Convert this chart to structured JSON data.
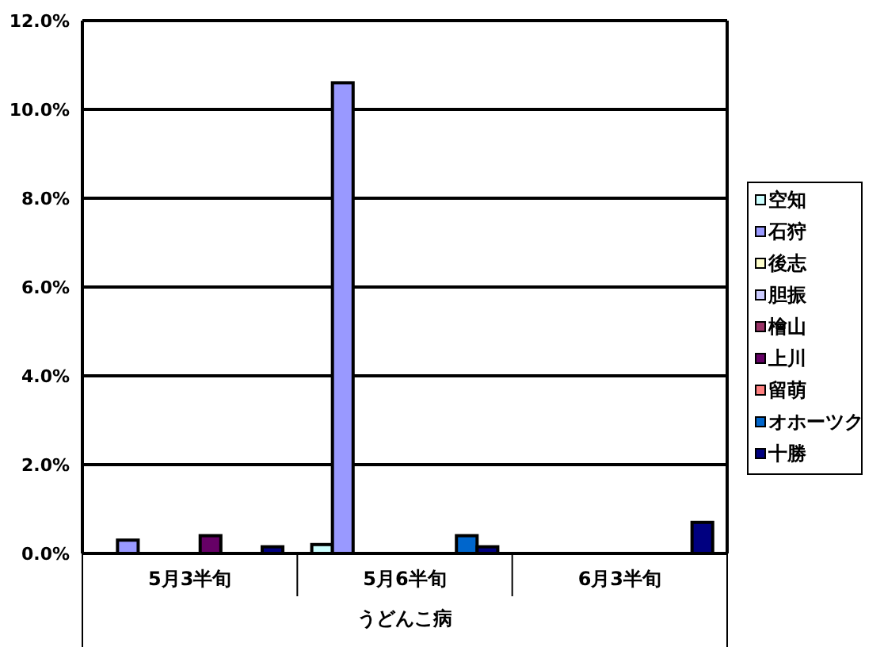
{
  "chart_data": {
    "type": "bar",
    "xlabel": "うどんこ病",
    "categories": [
      "5月3半旬",
      "5月6半旬",
      "6月3半旬"
    ],
    "series": [
      {
        "name": "空知",
        "color": "#ccffff",
        "values": [
          0,
          0.2,
          0
        ]
      },
      {
        "name": "石狩",
        "color": "#9999ff",
        "values": [
          0.3,
          10.6,
          0
        ]
      },
      {
        "name": "後志",
        "color": "#ffffcc",
        "values": [
          0,
          0,
          0
        ]
      },
      {
        "name": "胆振",
        "color": "#ccccff",
        "values": [
          0,
          0,
          0
        ]
      },
      {
        "name": "檜山",
        "color": "#993366",
        "values": [
          0,
          0,
          0
        ]
      },
      {
        "name": "上川",
        "color": "#660066",
        "values": [
          0.4,
          0,
          0
        ]
      },
      {
        "name": "留萌",
        "color": "#ff8080",
        "values": [
          0,
          0,
          0
        ]
      },
      {
        "name": "オホーツク",
        "color": "#0066cc",
        "values": [
          0,
          0.4,
          0
        ]
      },
      {
        "name": "十勝",
        "color": "#000080",
        "values": [
          0.15,
          0.15,
          0.7
        ]
      }
    ],
    "ylim": [
      0,
      12
    ],
    "yticks": [
      {
        "value": 0,
        "label": "0.0%"
      },
      {
        "value": 2,
        "label": "2.0%"
      },
      {
        "value": 4,
        "label": "4.0%"
      },
      {
        "value": 6,
        "label": "6.0%"
      },
      {
        "value": 8,
        "label": "8.0%"
      },
      {
        "value": 10,
        "label": "10.0%"
      },
      {
        "value": 12,
        "label": "12.0%"
      }
    ],
    "grid": "y",
    "legend": "right"
  }
}
